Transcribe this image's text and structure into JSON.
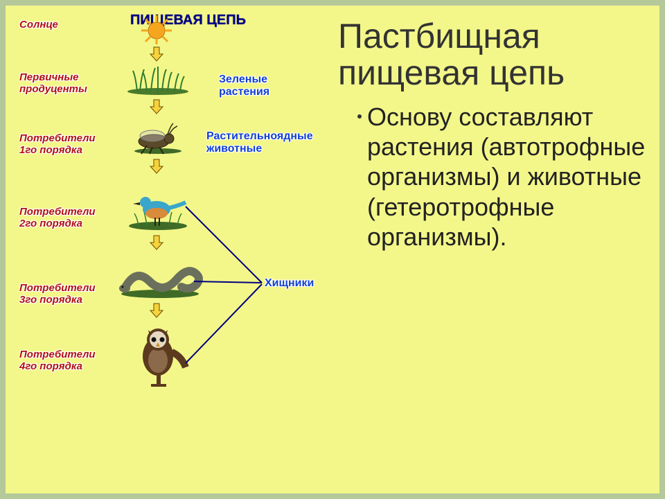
{
  "slide": {
    "background": "#f3f789",
    "outer_background": "#b5c89a"
  },
  "diagram": {
    "header": "ПИЩЕВАЯ ЦЕПЬ",
    "left_labels": [
      "Солнце",
      "Первичные\nпродуценты",
      "Потребители\n1го порядка",
      "Потребители\n2го порядка",
      "Потребители\n3го порядка",
      "Потребители\n4го порядка"
    ],
    "right_labels": [
      "Зеленые\nрастения",
      "Растительноядные\nживотные",
      "Хищники"
    ],
    "arrow": {
      "fill": "#f6d33c",
      "stroke": "#6b4b00"
    },
    "icons": {
      "sun_color": "#f6a61e",
      "grass_color": "#2e7d32",
      "insect_color": "#5b4a2a",
      "bird_body": "#3aa6c9",
      "bird_belly": "#d88b3a",
      "snake_color": "#6b705c",
      "owl_body": "#5b3a1e",
      "owl_face": "#e6d9c2"
    },
    "connector_color": "#000080"
  },
  "title": "Пастбищная пищевая цепь",
  "bullet": "Основу составляют растения (автотрофные организмы) и животные (гетеротрофные организмы)."
}
